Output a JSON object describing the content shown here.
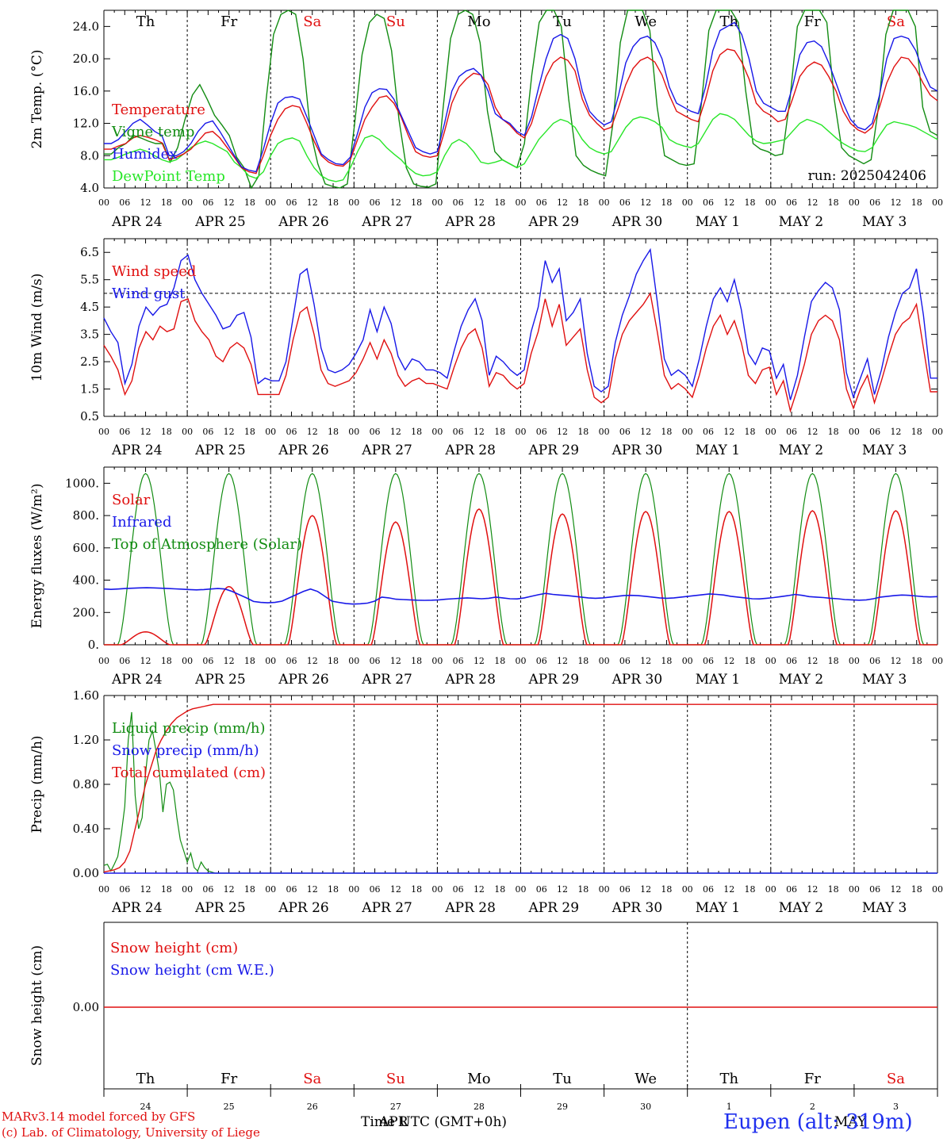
{
  "chart_data": [
    {
      "type": "line",
      "ylabel": "2m Temp. (°C)",
      "ylim": [
        4,
        26
      ],
      "yticks": [
        "4.0",
        "8.0",
        "12.0",
        "16.0",
        "20.0",
        "24.0"
      ],
      "day_labels": [
        "Th",
        "Fr",
        "Sa",
        "Su",
        "Mo",
        "Tu",
        "We",
        "Th",
        "Fr",
        "Sa"
      ],
      "run_label": "run: 2025042406",
      "series": [
        {
          "name": "Temperature",
          "color": "#e01010",
          "values": [
            8.8,
            8.8,
            9.2,
            9.5,
            10.2,
            10.5,
            10.3,
            10.0,
            9.6,
            7.5,
            7.8,
            8.2,
            8.8,
            9.8,
            10.8,
            11.0,
            10.2,
            9.0,
            7.8,
            6.5,
            6.0,
            5.8,
            8.0,
            10.5,
            12.5,
            13.8,
            14.2,
            14.0,
            12.0,
            9.8,
            8.0,
            7.2,
            6.8,
            6.7,
            7.5,
            10.0,
            12.5,
            14.0,
            15.2,
            15.4,
            14.5,
            12.8,
            10.5,
            8.5,
            8.0,
            7.8,
            8.0,
            11.0,
            14.5,
            16.5,
            17.5,
            18.2,
            18.0,
            16.8,
            14.0,
            12.5,
            11.8,
            10.8,
            10.2,
            12.0,
            15.0,
            17.8,
            19.5,
            20.2,
            19.8,
            18.5,
            15.0,
            13.0,
            12.0,
            11.2,
            11.5,
            14.0,
            16.8,
            18.8,
            19.8,
            20.2,
            19.6,
            18.0,
            15.5,
            13.5,
            13.0,
            12.5,
            12.2,
            15.0,
            18.5,
            20.5,
            21.2,
            21.0,
            19.6,
            17.5,
            14.5,
            13.5,
            13.0,
            12.2,
            12.5,
            15.0,
            17.8,
            19.0,
            19.6,
            19.2,
            17.8,
            16.0,
            13.5,
            12.0,
            11.2,
            10.8,
            11.5,
            14.0,
            17.0,
            19.0,
            20.2,
            20.0,
            18.8,
            17.0,
            15.5,
            14.8
          ]
        },
        {
          "name": "Vigne temp",
          "color": "#128c12",
          "values": [
            8.2,
            8.2,
            9.0,
            9.5,
            10.5,
            10.2,
            9.8,
            9.5,
            9.5,
            7.2,
            9.0,
            12.5,
            15.5,
            16.8,
            15.0,
            13.0,
            11.8,
            10.5,
            7.8,
            6.5,
            4.0,
            5.5,
            15.0,
            23.0,
            25.5,
            26.0,
            25.5,
            20.0,
            11.0,
            7.0,
            4.5,
            4.2,
            4.0,
            4.5,
            12.0,
            20.5,
            24.5,
            25.5,
            25.0,
            21.0,
            12.5,
            6.5,
            4.5,
            4.2,
            4.1,
            4.5,
            14.0,
            22.5,
            25.5,
            26.0,
            25.5,
            22.0,
            13.5,
            8.5,
            7.5,
            7.0,
            6.5,
            9.5,
            18.0,
            24.5,
            26.0,
            26.0,
            24.0,
            15.0,
            8.0,
            6.8,
            6.2,
            5.8,
            5.5,
            12.0,
            22.0,
            26.0,
            26.0,
            26.0,
            23.5,
            14.0,
            8.0,
            7.5,
            7.0,
            6.8,
            7.0,
            14.5,
            23.5,
            26.0,
            26.0,
            26.0,
            24.5,
            16.0,
            9.5,
            8.8,
            8.5,
            8.0,
            8.2,
            15.0,
            24.0,
            26.0,
            26.0,
            26.0,
            24.5,
            15.0,
            9.0,
            8.0,
            7.5,
            7.0,
            7.5,
            14.0,
            23.0,
            26.0,
            26.0,
            26.0,
            24.0,
            14.0,
            11.0,
            10.5
          ]
        },
        {
          "name": "Humidex",
          "color": "#1818e8",
          "values": [
            9.5,
            9.5,
            10.0,
            11.0,
            12.0,
            12.5,
            11.8,
            11.0,
            10.5,
            8.0,
            8.0,
            8.5,
            9.5,
            11.0,
            12.0,
            12.3,
            11.0,
            9.5,
            8.0,
            6.6,
            6.2,
            6.0,
            8.8,
            12.0,
            14.5,
            15.2,
            15.3,
            15.0,
            12.8,
            10.5,
            8.2,
            7.5,
            7.0,
            6.9,
            7.8,
            10.8,
            14.0,
            15.8,
            16.3,
            16.2,
            15.0,
            13.0,
            11.0,
            9.0,
            8.5,
            8.2,
            8.5,
            12.0,
            16.0,
            17.8,
            18.5,
            18.8,
            18.0,
            16.0,
            13.2,
            12.5,
            12.0,
            11.0,
            10.5,
            12.8,
            16.5,
            20.0,
            22.5,
            23.0,
            22.5,
            20.0,
            16.0,
            13.5,
            12.5,
            11.8,
            12.2,
            15.5,
            19.5,
            21.5,
            22.5,
            22.8,
            22.0,
            20.0,
            16.5,
            14.5,
            14.0,
            13.5,
            13.2,
            16.5,
            21.0,
            23.5,
            24.0,
            24.5,
            23.0,
            20.0,
            16.0,
            14.5,
            14.0,
            13.5,
            13.5,
            16.5,
            20.5,
            22.0,
            22.2,
            21.5,
            19.5,
            17.0,
            14.5,
            12.5,
            11.5,
            11.2,
            12.0,
            15.5,
            20.0,
            22.5,
            22.8,
            22.5,
            21.0,
            18.5,
            16.5,
            16.0
          ]
        },
        {
          "name": "DewPoint Temp",
          "color": "#28e628",
          "values": [
            7.5,
            7.5,
            7.8,
            8.2,
            8.5,
            8.8,
            8.5,
            8.0,
            7.5,
            7.2,
            7.5,
            8.2,
            9.0,
            9.5,
            9.8,
            9.5,
            9.0,
            8.5,
            7.2,
            6.5,
            5.5,
            5.2,
            6.0,
            8.0,
            9.5,
            10.0,
            10.2,
            9.8,
            8.0,
            6.5,
            5.5,
            5.0,
            4.8,
            5.0,
            6.5,
            8.5,
            10.2,
            10.5,
            10.0,
            9.0,
            8.2,
            7.5,
            6.5,
            5.8,
            5.5,
            5.6,
            6.0,
            8.0,
            9.5,
            10.0,
            9.5,
            8.5,
            7.2,
            7.0,
            7.2,
            7.5,
            7.0,
            6.5,
            7.0,
            8.5,
            10.0,
            11.0,
            12.0,
            12.5,
            12.2,
            11.5,
            10.0,
            9.0,
            8.5,
            8.2,
            8.5,
            10.0,
            11.5,
            12.5,
            12.8,
            12.6,
            12.2,
            11.5,
            10.0,
            9.5,
            9.2,
            9.0,
            9.5,
            11.0,
            12.5,
            13.2,
            13.0,
            12.5,
            11.5,
            10.5,
            9.8,
            9.5,
            9.6,
            9.8,
            10.0,
            11.0,
            12.0,
            12.5,
            12.2,
            11.8,
            11.0,
            10.2,
            9.5,
            9.0,
            8.6,
            8.5,
            9.0,
            10.5,
            11.8,
            12.2,
            12.0,
            11.8,
            11.5,
            11.0,
            10.5,
            10.0
          ]
        }
      ]
    },
    {
      "type": "line",
      "ylabel": "10m Wind (m/s)",
      "ylim": [
        0.5,
        7.0
      ],
      "yticks": [
        "0.5",
        "1.5",
        "2.5",
        "3.5",
        "4.5",
        "5.5",
        "6.5"
      ],
      "reference_line": 5.0,
      "series": [
        {
          "name": "Wind speed",
          "color": "#e01010",
          "values": [
            3.1,
            2.7,
            2.2,
            1.3,
            1.8,
            3.0,
            3.6,
            3.3,
            3.8,
            3.6,
            3.7,
            4.7,
            4.8,
            4.0,
            3.6,
            3.3,
            2.7,
            2.5,
            3.0,
            3.2,
            3.0,
            2.4,
            1.3,
            1.3,
            1.3,
            1.3,
            2.0,
            3.3,
            4.3,
            4.5,
            3.5,
            2.2,
            1.7,
            1.6,
            1.7,
            1.8,
            2.1,
            2.6,
            3.2,
            2.6,
            3.3,
            2.8,
            2.0,
            1.6,
            1.8,
            1.9,
            1.7,
            1.7,
            1.6,
            1.5,
            2.3,
            3.0,
            3.5,
            3.7,
            3.0,
            1.6,
            2.1,
            2.0,
            1.7,
            1.5,
            1.7,
            2.8,
            3.6,
            4.8,
            3.8,
            4.6,
            3.1,
            3.4,
            3.7,
            2.2,
            1.2,
            1.0,
            1.2,
            2.6,
            3.5,
            4.0,
            4.3,
            4.6,
            5.0,
            3.6,
            2.0,
            1.5,
            1.7,
            1.5,
            1.2,
            2.0,
            3.0,
            3.8,
            4.2,
            3.5,
            4.0,
            3.2,
            2.0,
            1.7,
            2.2,
            2.3,
            1.3,
            1.8,
            0.7,
            1.5,
            2.4,
            3.5,
            4.0,
            4.2,
            4.0,
            3.3,
            1.5,
            0.8,
            1.5,
            2.0,
            1.0,
            1.8,
            2.7,
            3.5,
            3.9,
            4.1,
            4.6,
            3.0,
            1.4,
            1.4
          ]
        },
        {
          "name": "Wind gust",
          "color": "#1818e8",
          "values": [
            4.1,
            3.6,
            3.2,
            1.7,
            2.4,
            3.8,
            4.5,
            4.2,
            4.5,
            4.6,
            5.2,
            6.2,
            6.4,
            5.5,
            5.0,
            4.6,
            4.2,
            3.7,
            3.8,
            4.2,
            4.3,
            3.4,
            1.7,
            1.9,
            1.8,
            1.8,
            2.5,
            4.1,
            5.7,
            5.9,
            4.6,
            3.0,
            2.2,
            2.1,
            2.2,
            2.4,
            2.8,
            3.3,
            4.4,
            3.6,
            4.5,
            3.9,
            2.7,
            2.2,
            2.6,
            2.5,
            2.2,
            2.2,
            2.1,
            1.9,
            2.9,
            3.8,
            4.4,
            4.8,
            4.0,
            2.0,
            2.7,
            2.5,
            2.2,
            2.0,
            2.2,
            3.6,
            4.5,
            6.2,
            5.4,
            5.9,
            4.0,
            4.3,
            4.8,
            2.8,
            1.6,
            1.4,
            1.6,
            3.2,
            4.2,
            4.9,
            5.7,
            6.2,
            6.6,
            4.7,
            2.6,
            2.0,
            2.2,
            2.0,
            1.6,
            2.6,
            3.8,
            4.8,
            5.2,
            4.7,
            5.5,
            4.4,
            2.8,
            2.4,
            3.0,
            2.9,
            1.9,
            2.4,
            1.1,
            2.0,
            3.4,
            4.7,
            5.1,
            5.4,
            5.2,
            4.4,
            2.1,
            1.2,
            1.9,
            2.6,
            1.3,
            2.2,
            3.4,
            4.3,
            5.0,
            5.2,
            5.9,
            4.2,
            1.9,
            1.9
          ]
        }
      ]
    },
    {
      "type": "line",
      "ylabel": "Energy fluxes (W/m²)",
      "ylim": [
        0,
        1100
      ],
      "yticks": [
        "0.",
        "200.",
        "400.",
        "600.",
        "800.",
        "1000."
      ],
      "series": [
        {
          "name": "Solar",
          "color": "#e01010",
          "solar_peaks": [
            80,
            360,
            800,
            760,
            840,
            810,
            825,
            825,
            830,
            830
          ],
          "solar_peaks_unit": "W/m²"
        },
        {
          "name": "Infrared",
          "color": "#1818e8",
          "values": [
            345,
            343,
            345,
            348,
            350,
            352,
            353,
            352,
            350,
            348,
            346,
            344,
            342,
            340,
            342,
            345,
            348,
            345,
            330,
            310,
            290,
            268,
            262,
            260,
            262,
            270,
            290,
            310,
            330,
            345,
            330,
            300,
            270,
            262,
            255,
            252,
            254,
            258,
            270,
            295,
            290,
            282,
            280,
            278,
            276,
            275,
            276,
            278,
            282,
            285,
            288,
            290,
            288,
            285,
            288,
            295,
            290,
            285,
            284,
            290,
            300,
            310,
            318,
            312,
            308,
            305,
            300,
            295,
            290,
            288,
            290,
            295,
            300,
            305,
            306,
            304,
            300,
            295,
            290,
            288,
            290,
            295,
            300,
            305,
            310,
            315,
            312,
            308,
            300,
            295,
            290,
            285,
            284,
            288,
            292,
            298,
            304,
            312,
            306,
            298,
            295,
            292,
            288,
            285,
            280,
            278,
            276,
            278,
            285,
            295,
            300,
            305,
            308,
            306,
            302,
            298,
            296,
            298
          ]
        },
        {
          "name": "Top of Atmosphere (Solar)",
          "color": "#128c12",
          "daily_peak": 1060,
          "daily_peak_unit": "W/m²"
        }
      ]
    },
    {
      "type": "line",
      "ylabel": "Precip (mm/h)",
      "ylim": [
        0,
        1.6
      ],
      "yticks": [
        "0.00",
        "0.40",
        "0.80",
        "1.20",
        "1.60"
      ],
      "series": [
        {
          "name": "Liquid precip (mm/h)",
          "color": "#128c12",
          "values": [
            0.07,
            0.08,
            0.02,
            0.08,
            0.15,
            0.35,
            0.6,
            1.2,
            1.45,
            0.7,
            0.4,
            0.5,
            0.9,
            1.2,
            1.28,
            1.1,
            0.9,
            0.55,
            0.8,
            0.82,
            0.75,
            0.5,
            0.3,
            0.2,
            0.1,
            0.18,
            0.05,
            0.02,
            0.1,
            0.05,
            0.02,
            0.01,
            0.0
          ]
        },
        {
          "name": "Snow precip (mm/h)",
          "color": "#1818e8",
          "values": [
            0.0
          ]
        },
        {
          "name": "Total cumulated (cm)",
          "color": "#e01010",
          "values": [
            0.01,
            0.02,
            0.03,
            0.05,
            0.1,
            0.2,
            0.4,
            0.6,
            0.8,
            0.95,
            1.1,
            1.2,
            1.28,
            1.35,
            1.4,
            1.43,
            1.46,
            1.48,
            1.49,
            1.5,
            1.51,
            1.52
          ]
        }
      ]
    },
    {
      "type": "line",
      "ylabel": "Snow height (cm)",
      "yticks": [
        "0.00"
      ],
      "series": [
        {
          "name": "Snow height (cm)",
          "color": "#e01010",
          "values": [
            0.0
          ]
        },
        {
          "name": "Snow height (cm W.E.)",
          "color": "#1818e8",
          "values": [
            0.0
          ]
        }
      ]
    }
  ],
  "hour_ticks": [
    "00",
    "06",
    "12",
    "18"
  ],
  "date_labels": [
    "APR 24",
    "APR 25",
    "APR 26",
    "APR 27",
    "APR 28",
    "APR 29",
    "APR 30",
    "MAY  1",
    "MAY  2",
    "MAY  3"
  ],
  "bottom_day_labels": [
    "Th",
    "Fr",
    "Sa",
    "Su",
    "Mo",
    "Tu",
    "We",
    "Th",
    "Fr",
    "Sa"
  ],
  "bottom_day_numbers": [
    "24",
    "25",
    "26",
    "27",
    "28",
    "29",
    "30",
    "1",
    "2",
    "3"
  ],
  "weekend_color": "#e01010",
  "footer": {
    "model": "MARv3.14 model forced by GFS",
    "lab": "(c) Lab. of Climatology, University of Liege",
    "xlabel": "Time UTC (GMT+0h)",
    "month": "APR",
    "month2": "MAY",
    "station": "Eupen (alt: 319m)"
  }
}
